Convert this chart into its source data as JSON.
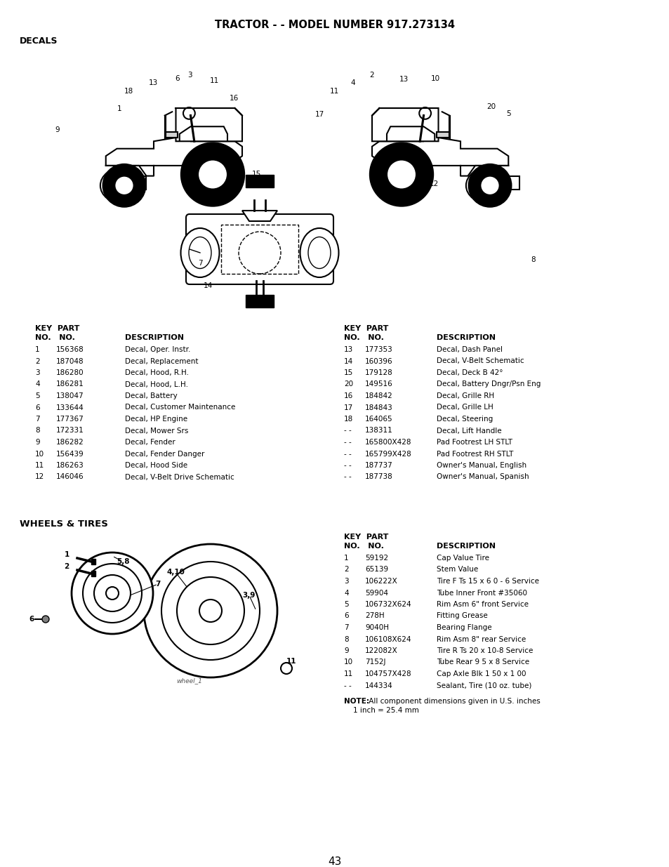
{
  "title": "TRACTOR - - MODEL NUMBER 917.273134",
  "section1": "DECALS",
  "section2": "WHEELS & TIRES",
  "page_number": "43",
  "bg_color": "#ffffff",
  "decals_left": [
    [
      "1",
      "156368",
      "Decal, Oper. Instr."
    ],
    [
      "2",
      "187048",
      "Decal, Replacement"
    ],
    [
      "3",
      "186280",
      "Decal, Hood, R.H."
    ],
    [
      "4",
      "186281",
      "Decal, Hood, L.H."
    ],
    [
      "5",
      "138047",
      "Decal, Battery"
    ],
    [
      "6",
      "133644",
      "Decal, Customer Maintenance"
    ],
    [
      "7",
      "177367",
      "Decal, HP Engine"
    ],
    [
      "8",
      "172331",
      "Decal, Mower Srs"
    ],
    [
      "9",
      "186282",
      "Decal, Fender"
    ],
    [
      "10",
      "156439",
      "Decal, Fender Danger"
    ],
    [
      "11",
      "186263",
      "Decal, Hood Side"
    ],
    [
      "12",
      "146046",
      "Decal, V-Belt Drive Schematic"
    ]
  ],
  "decals_right": [
    [
      "13",
      "177353",
      "Decal, Dash Panel"
    ],
    [
      "14",
      "160396",
      "Decal, V-Belt Schematic"
    ],
    [
      "15",
      "179128",
      "Decal, Deck B 42°"
    ],
    [
      "20",
      "149516",
      "Decal, Battery Dngr/Psn Eng"
    ],
    [
      "16",
      "184842",
      "Decal, Grille RH"
    ],
    [
      "17",
      "184843",
      "Decal, Grille LH"
    ],
    [
      "18",
      "164065",
      "Decal, Steering"
    ],
    [
      "- -",
      "138311",
      "Decal, Lift Handle"
    ],
    [
      "- -",
      "165800X428",
      "Pad Footrest LH STLT"
    ],
    [
      "- -",
      "165799X428",
      "Pad Footrest RH STLT"
    ],
    [
      "- -",
      "187737",
      "Owner's Manual, English"
    ],
    [
      "- -",
      "187738",
      "Owner's Manual, Spanish"
    ]
  ],
  "wheels_rows": [
    [
      "1",
      "59192",
      "Cap Value Tire"
    ],
    [
      "2",
      "65139",
      "Stem Value"
    ],
    [
      "3",
      "106222X",
      "Tire F Ts 15 x 6 0 - 6 Service"
    ],
    [
      "4",
      "59904",
      "Tube Inner Front #35060"
    ],
    [
      "5",
      "106732X624",
      "Rim Asm 6\" front Service"
    ],
    [
      "6",
      "278H",
      "Fitting Grease"
    ],
    [
      "7",
      "9040H",
      "Bearing Flange"
    ],
    [
      "8",
      "106108X624",
      "Rim Asm 8\" rear Service"
    ],
    [
      "9",
      "122082X",
      "Tire R Ts 20 x 10-8 Service"
    ],
    [
      "10",
      "7152J",
      "Tube Rear 9 5 x 8 Service"
    ],
    [
      "11",
      "104757X428",
      "Cap Axle Blk 1 50 x 1 00"
    ],
    [
      "- -",
      "144334",
      "Sealant, Tire (10 oz. tube)"
    ]
  ],
  "note_bold": "NOTE:",
  "note_rest": " All component dimensions given in U.S. inches\n    1 inch = 25.4 mm"
}
